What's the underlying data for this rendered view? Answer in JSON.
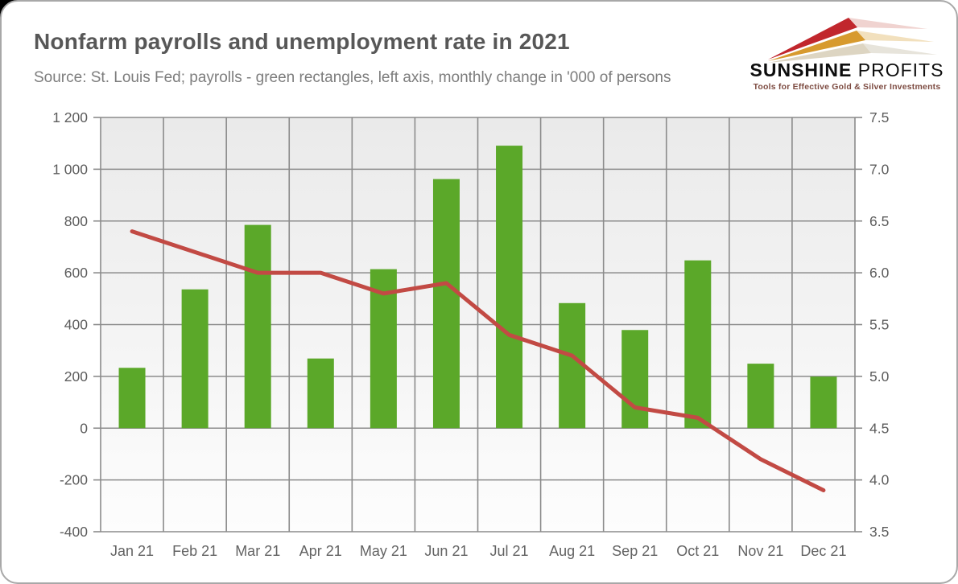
{
  "header": {
    "title": "Nonfarm payrolls and unemployment rate in 2021",
    "subtitle": "Source: St. Louis Fed; payrolls - green rectangles, left axis, monthly change in '000 of persons"
  },
  "logo": {
    "name_primary": "SUNSHINE",
    "name_secondary": "PROFITS",
    "tagline": "Tools for Effective Gold & Silver Investments",
    "colors": {
      "arrow_red": "#c1272d",
      "arrow_gold": "#d79a2e",
      "arrow_cream": "#ddd5c2",
      "echo_red": "#dd9d96",
      "echo_gold": "#e6c27c",
      "echo_cream": "#d4cdbd"
    }
  },
  "chart_data": {
    "type": "bar",
    "title": "Nonfarm payrolls and unemployment rate in 2021",
    "categories": [
      "Jan 21",
      "Feb 21",
      "Mar 21",
      "Apr 21",
      "May 21",
      "Jun 21",
      "Jul 21",
      "Aug 21",
      "Sep 21",
      "Oct 21",
      "Nov 21",
      "Dec 21"
    ],
    "series": [
      {
        "name": "Nonfarm payrolls, monthly change in '000 of persons",
        "type": "bar",
        "axis": "left",
        "color": "#5ba829",
        "values": [
          233,
          536,
          785,
          269,
          614,
          962,
          1091,
          483,
          379,
          648,
          249,
          199
        ]
      },
      {
        "name": "Unemployment rate, %",
        "type": "line",
        "axis": "right",
        "color": "#c24a44",
        "values": [
          6.4,
          6.2,
          6.0,
          6.0,
          5.8,
          5.9,
          5.4,
          5.2,
          4.7,
          4.6,
          4.2,
          3.9
        ]
      }
    ],
    "left_axis": {
      "min": -400,
      "max": 1200,
      "step": 200,
      "tick_labels": [
        "1 200",
        "1 000",
        "800",
        "600",
        "400",
        "200",
        "0",
        "-200",
        "-400"
      ]
    },
    "right_axis": {
      "min": 3.5,
      "max": 7.5,
      "step": 0.5,
      "tick_labels": [
        "7.5",
        "7.0",
        "6.5",
        "6.0",
        "5.5",
        "5.0",
        "4.5",
        "4.0",
        "3.5"
      ]
    },
    "grid": true,
    "legend": "none"
  }
}
